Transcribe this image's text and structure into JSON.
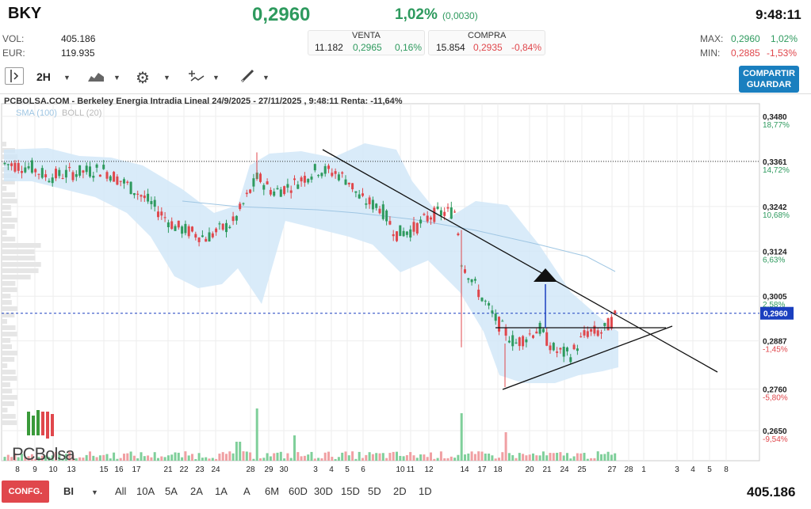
{
  "header": {
    "symbol": "BKY",
    "last_price": "0,2960",
    "change_pct": "1,02%",
    "change_abs": "(0,0030)",
    "time": "9:48:11",
    "vol_label": "VOL:",
    "vol_value": "405.186",
    "eur_label": "EUR:",
    "eur_value": "119.935",
    "venta_label": "VENTA",
    "venta_qty": "11.182",
    "venta_price": "0,2965",
    "venta_pct": "0,16%",
    "compra_label": "COMPRA",
    "compra_qty": "15.854",
    "compra_price": "0,2935",
    "compra_pct": "-0,84%",
    "max_label": "MAX:",
    "max_price": "0,2960",
    "max_pct": "1,02%",
    "min_label": "MIN:",
    "min_price": "0,2885",
    "min_pct": "-1,53%"
  },
  "toolbar": {
    "interval": "2H",
    "share_line1": "COMPARTIR",
    "share_line2": "GUARDAR",
    "icons": [
      "sidebar-toggle-icon",
      "chart-type-icon",
      "gear-icon",
      "indicators-icon",
      "drawing-tools-icon"
    ]
  },
  "chart": {
    "title": "PCBOLSA.COM - Berkeley Energia Intradia Lineal 24/9/2025 - 27/11/2025 , 9:48:11 Renta: -11,64%",
    "legend_sma": "SMA (100)",
    "legend_boll": "BOLL (20)",
    "watermark": "PCBolsa",
    "current_label": "0,2960",
    "y_labels": [
      {
        "price": "0,3480",
        "pct": "18,77%",
        "pct_color": "green"
      },
      {
        "price": "0,3361",
        "pct": "14,72%",
        "pct_color": "green"
      },
      {
        "price": "0,3242",
        "pct": "10,68%",
        "pct_color": "green"
      },
      {
        "price": "0,3124",
        "pct": "6,63%",
        "pct_color": "green"
      },
      {
        "price": "0,3005",
        "pct": "2,58%",
        "pct_color": "green"
      },
      {
        "price": "0,2887",
        "pct": "-1,45%",
        "pct_color": "red"
      },
      {
        "price": "0,2760",
        "pct": "-5,80%",
        "pct_color": "red"
      },
      {
        "price": "0,2650",
        "pct": "-9,54%",
        "pct_color": "red"
      }
    ],
    "x_labels": [
      "8",
      "9",
      "10",
      "13",
      "15",
      "16",
      "17",
      "21",
      "22",
      "23",
      "24",
      "28",
      "29",
      "30",
      "3",
      "4",
      "5",
      "6",
      "10",
      "11",
      "12",
      "14",
      "17",
      "18",
      "20",
      "21",
      "24",
      "25",
      "27",
      "28",
      "1",
      "3",
      "4",
      "5",
      "8"
    ]
  },
  "bottom": {
    "config_label": "CONFG.",
    "mode_label": "BI",
    "periods": [
      "All",
      "10A",
      "5A",
      "2A",
      "1A",
      "A",
      "6M",
      "60D",
      "30D",
      "15D",
      "5D",
      "2D",
      "1D"
    ],
    "volume": "405.186"
  },
  "colors": {
    "up": "#2e9a5e",
    "down": "#e0474c",
    "band": "#cfe6f7",
    "accent": "#1a7fbf"
  }
}
